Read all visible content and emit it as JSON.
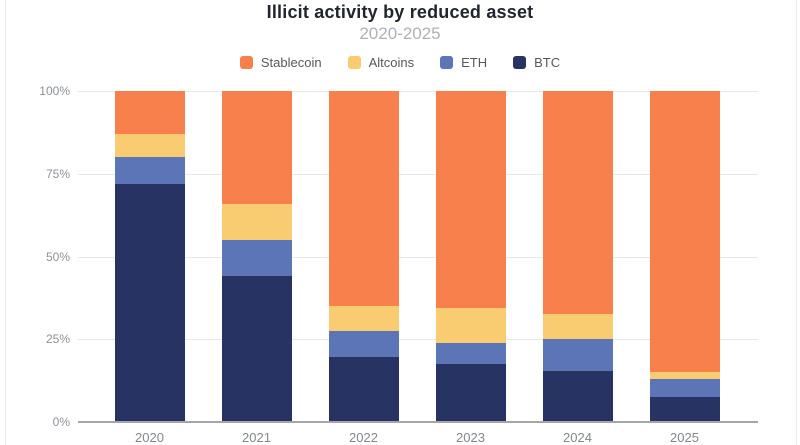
{
  "chart_data": {
    "type": "bar",
    "stacked": true,
    "title": "Illicit activity by reduced asset",
    "subtitle": "2020-2025",
    "categories": [
      "2020",
      "2021",
      "2022",
      "2023",
      "2024",
      "2025"
    ],
    "series": [
      {
        "name": "Stablecoin",
        "color": "#F8804C",
        "values": [
          13,
          34,
          65,
          65.5,
          67.5,
          85
        ]
      },
      {
        "name": "Altcoins",
        "color": "#FACC71",
        "values": [
          7,
          11,
          7.5,
          10.5,
          7.5,
          2
        ]
      },
      {
        "name": "ETH",
        "color": "#5B75B7",
        "values": [
          8,
          11,
          8,
          6.5,
          9.5,
          5.5
        ]
      },
      {
        "name": "BTC",
        "color": "#263363",
        "values": [
          72,
          44,
          19.5,
          17.5,
          15.5,
          7.5
        ]
      }
    ],
    "yticks": [
      {
        "label": "0%",
        "value": 0
      },
      {
        "label": "25%",
        "value": 25
      },
      {
        "label": "50%",
        "value": 50
      },
      {
        "label": "75%",
        "value": 75
      },
      {
        "label": "100%",
        "value": 100
      }
    ],
    "ylim": [
      0,
      100
    ],
    "legend_position": "top",
    "grid": true,
    "colors": {
      "grid": "#e8e8e8",
      "axis": "#a6a6a6",
      "title": "#21252e",
      "subtitle": "#aeb1b6",
      "tick_text": "#8c9199"
    }
  }
}
